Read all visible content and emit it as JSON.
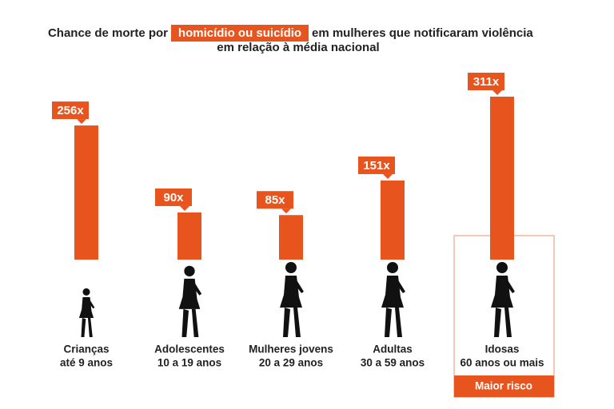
{
  "chart_data": {
    "type": "bar",
    "title_parts": [
      "Chance de morte por",
      "homicídio ou suicídio",
      "em mulheres que notificaram violência",
      "em relação à média nacional"
    ],
    "categories": [
      [
        "Crianças",
        "até 9 anos"
      ],
      [
        "Adolescentes",
        "10 a 19 anos"
      ],
      [
        "Mulheres jovens",
        "20 a 29 anos"
      ],
      [
        "Adultas",
        "30 a 59 anos"
      ],
      [
        "Idosas",
        "60 anos ou mais"
      ]
    ],
    "values": [
      256,
      90,
      85,
      151,
      311
    ],
    "value_labels": [
      "256x",
      "90x",
      "85x",
      "151x",
      "311x"
    ],
    "color": "#e8541e",
    "annotation": "Maior risco"
  }
}
